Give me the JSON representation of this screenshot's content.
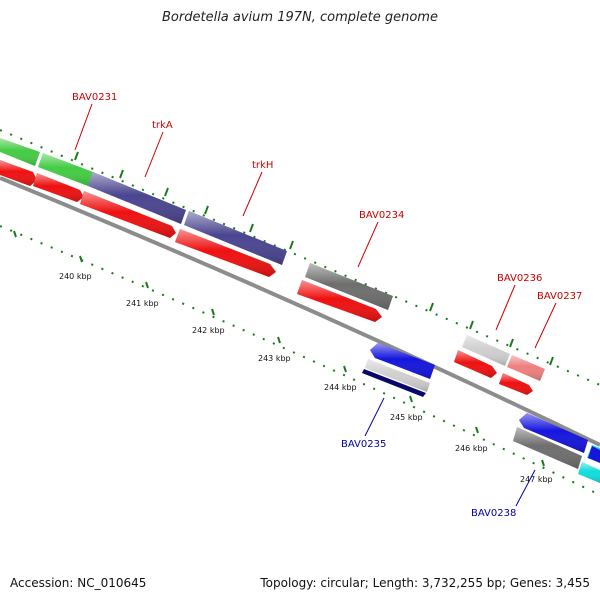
{
  "header": {
    "title": "Bordetella avium 197N, complete genome"
  },
  "footer": {
    "accession": "Accession: NC_010645",
    "stats": "Topology: circular; Length: 3,732,255 bp; Genes: 3,455"
  },
  "scale": {
    "labels": [
      "240 kbp",
      "241 kbp",
      "242 kbp",
      "243 kbp",
      "244 kbp",
      "245 kbp",
      "246 kbp",
      "247 kbp"
    ]
  },
  "genes": {
    "forward": [
      "BAV0231",
      "trkA",
      "trkH",
      "BAV0234",
      "BAV0236",
      "BAV0237"
    ],
    "reverse": [
      "BAV0235",
      "BAV0238"
    ]
  },
  "colors": {
    "forward_label": "#cc0000",
    "reverse_label": "#0000aa",
    "backbone": "#8c8c8c",
    "tick": "#1a7a1a",
    "red": "#ee1111",
    "green": "#44cc44",
    "purple": "#4a4590",
    "darkgray": "#6e6e6e",
    "lightgray": "#cfcfcf",
    "pink": "#ee7f7f",
    "blue": "#1515dd",
    "navy": "#08086a",
    "cyan": "#11dddd"
  }
}
